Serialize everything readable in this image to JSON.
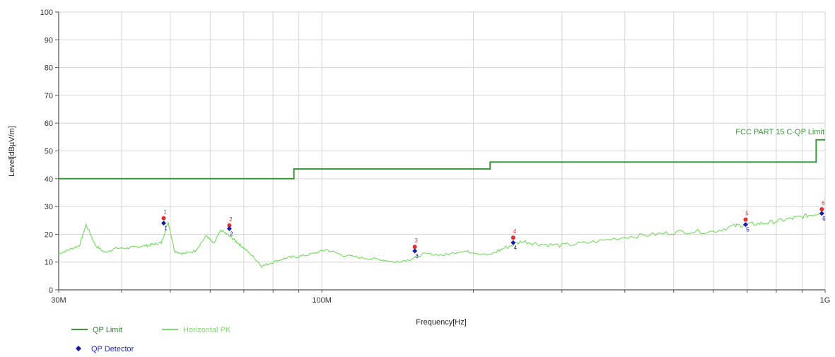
{
  "chart_data": {
    "type": "line",
    "xlabel": "Frequency[Hz]",
    "ylabel": "Level[dBµV/m]",
    "xscale": "log",
    "xlim": [
      30000000,
      1000000000
    ],
    "ylim": [
      0,
      100
    ],
    "grid": true,
    "x_tick_labels": [
      {
        "value": 30000000,
        "label": "30M"
      },
      {
        "value": 100000000,
        "label": "100M"
      },
      {
        "value": 1000000000,
        "label": "1G"
      }
    ],
    "y_ticks": [
      0,
      10,
      20,
      30,
      40,
      50,
      60,
      70,
      80,
      90,
      100
    ],
    "limit_annotation": "FCC PART 15 C-QP Limit",
    "colors": {
      "limit": "#3a9a3a",
      "trace": "#7edc6a",
      "detector": "#1a1aa8",
      "marker": "#e03030",
      "grid": "#d6d6d6",
      "axis": "#555555"
    },
    "series": [
      {
        "name": "QP Limit",
        "style": "step",
        "x": [
          30000000,
          88000000,
          88000000,
          216000000,
          216000000,
          960000000,
          960000000,
          1000000000
        ],
        "y": [
          40,
          40,
          43.5,
          43.5,
          46,
          46,
          54,
          54
        ]
      },
      {
        "name": "Horizontal PK",
        "style": "line",
        "x": [
          30000000,
          31500000,
          33000000,
          34000000,
          35500000,
          37000000,
          39000000,
          41000000,
          43000000,
          45000000,
          46500000,
          48000000,
          49500000,
          51000000,
          53000000,
          56000000,
          59000000,
          61000000,
          63000000,
          66000000,
          68000000,
          70000000,
          73000000,
          76000000,
          80000000,
          85000000,
          90000000,
          96000000,
          102000000,
          110000000,
          120000000,
          130000000,
          140000000,
          150000000,
          160000000,
          175000000,
          190000000,
          200000000,
          215000000,
          230000000,
          250000000,
          270000000,
          300000000,
          340000000,
          400000000,
          460000000,
          520000000,
          600000000,
          660000000,
          700000000,
          760000000,
          820000000,
          880000000,
          940000000,
          985000000
        ],
        "y": [
          13,
          14.5,
          16,
          23.5,
          16,
          13.5,
          15,
          15,
          15.5,
          16,
          16.5,
          17,
          24.5,
          14,
          13,
          14,
          19.5,
          16.5,
          21.5,
          19,
          17,
          15,
          12,
          8.5,
          10,
          11.5,
          12,
          13,
          14.5,
          12.5,
          11.5,
          11,
          10,
          11,
          13,
          12.5,
          14,
          13.5,
          12.5,
          15,
          17.5,
          16.5,
          16,
          17,
          19,
          20,
          21,
          21,
          23,
          23.5,
          24,
          25,
          26,
          27,
          28
        ]
      }
    ],
    "detector_legend": "QP Detector",
    "markers": [
      {
        "label": "1",
        "freq": 48500000,
        "peak": 25.8,
        "qp": 24.0
      },
      {
        "label": "2",
        "freq": 65500000,
        "peak": 23.2,
        "qp": 22.0
      },
      {
        "label": "3",
        "freq": 153000000,
        "peak": 15.5,
        "qp": 14.0
      },
      {
        "label": "4",
        "freq": 240000000,
        "peak": 18.8,
        "qp": 17.0
      },
      {
        "label": "5",
        "freq": 695000000,
        "peak": 25.3,
        "qp": 23.5
      },
      {
        "label": "6",
        "freq": 985000000,
        "peak": 29.0,
        "qp": 27.5
      }
    ]
  }
}
